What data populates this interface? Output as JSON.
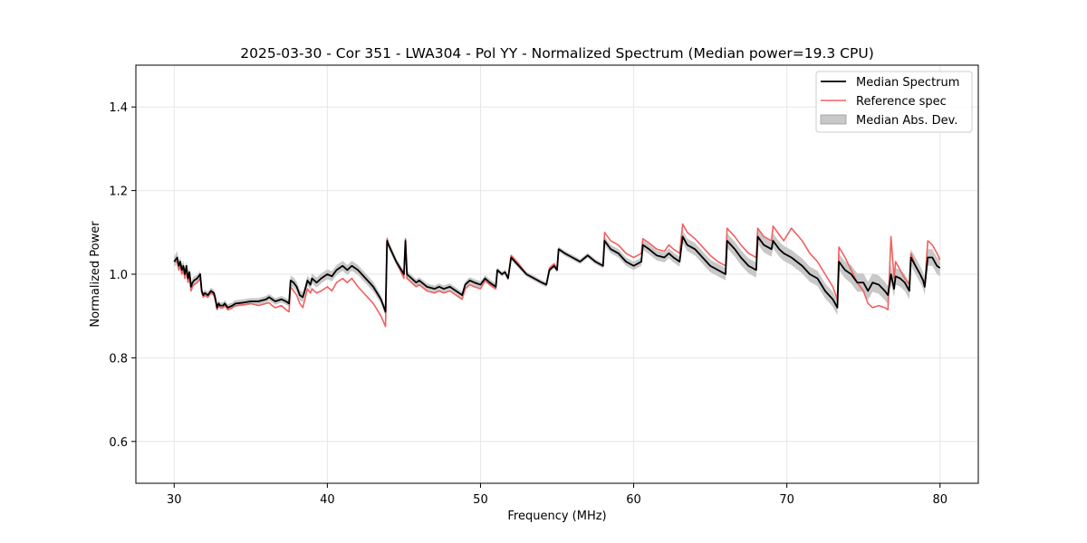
{
  "chart_data": {
    "type": "line",
    "title": "2025-03-30 - Cor 351 - LWA304 - Pol YY - Normalized Spectrum (Median power=19.3 CPU)",
    "xlabel": "Frequency (MHz)",
    "ylabel": "Normalized Power",
    "xlim": [
      27.5,
      82.5
    ],
    "ylim": [
      0.5,
      1.5
    ],
    "xticks": [
      30,
      40,
      50,
      60,
      70,
      80
    ],
    "xtick_labels": [
      "30",
      "40",
      "50",
      "60",
      "70",
      "80"
    ],
    "yticks": [
      0.6,
      0.8,
      1.0,
      1.2,
      1.4
    ],
    "ytick_labels": [
      "0.6",
      "0.8",
      "1.0",
      "1.2",
      "1.4"
    ],
    "grid": true,
    "legend_position": "top-right",
    "legend": [
      "Median Spectrum",
      "Reference spec",
      "Median Abs. Dev."
    ],
    "colors": {
      "median": "#000000",
      "reference": "#f06060",
      "mad_fill": "#c8c8c8",
      "grid": "#e6e6e6"
    },
    "series": [
      {
        "name": "Median Spectrum",
        "x": [
          30.0,
          30.2,
          30.3,
          30.4,
          30.5,
          30.6,
          30.7,
          30.8,
          30.9,
          31.0,
          31.1,
          31.2,
          31.3,
          31.5,
          31.7,
          31.8,
          31.9,
          32.0,
          32.2,
          32.4,
          32.6,
          32.7,
          32.8,
          32.9,
          33.0,
          33.2,
          33.3,
          33.5,
          33.8,
          34.0,
          34.5,
          35.0,
          35.5,
          36.0,
          36.2,
          36.4,
          36.6,
          37.0,
          37.3,
          37.5,
          37.6,
          37.8,
          38.0,
          38.2,
          38.4,
          38.6,
          38.7,
          38.9,
          39.0,
          39.3,
          39.6,
          40.0,
          40.3,
          40.6,
          41.0,
          41.3,
          41.6,
          42.0,
          42.5,
          43.0,
          43.5,
          43.8,
          43.9,
          44.0,
          44.5,
          45.0,
          45.1,
          45.2,
          45.5,
          45.8,
          46.0,
          46.5,
          47.0,
          47.3,
          47.6,
          48.0,
          48.4,
          48.6,
          48.8,
          49.0,
          49.3,
          49.6,
          50.0,
          50.3,
          50.6,
          51.0,
          51.1,
          51.4,
          51.6,
          51.8,
          52.0,
          52.5,
          53.0,
          53.5,
          54.0,
          54.3,
          54.5,
          54.8,
          55.0,
          55.1,
          55.5,
          56.0,
          56.5,
          57.0,
          57.5,
          58.0,
          58.1,
          58.5,
          59.0,
          59.5,
          60.0,
          60.5,
          60.6,
          61.0,
          61.5,
          62.0,
          62.3,
          62.6,
          63.0,
          63.2,
          63.5,
          64.0,
          64.5,
          65.0,
          65.5,
          66.0,
          66.1,
          66.6,
          67.0,
          67.5,
          68.0,
          68.1,
          68.5,
          69.0,
          69.1,
          69.5,
          69.8,
          70.3,
          71.0,
          71.5,
          72.0,
          72.5,
          73.0,
          73.3,
          73.4,
          73.8,
          74.2,
          74.6,
          75.0,
          75.3,
          75.6,
          76.0,
          76.4,
          76.6,
          76.8,
          77.0,
          77.1,
          77.4,
          77.7,
          78.0,
          78.1,
          78.4,
          78.7,
          78.9,
          79.0,
          79.2,
          79.5,
          79.8,
          80.0
        ],
        "values": [
          1.03,
          1.04,
          1.02,
          1.03,
          1.01,
          1.02,
          1.0,
          1.02,
          0.99,
          1.005,
          0.97,
          0.98,
          0.985,
          0.99,
          1.0,
          0.96,
          0.95,
          0.955,
          0.95,
          0.96,
          0.955,
          0.94,
          0.92,
          0.93,
          0.925,
          0.925,
          0.93,
          0.92,
          0.925,
          0.93,
          0.932,
          0.935,
          0.935,
          0.94,
          0.945,
          0.94,
          0.935,
          0.94,
          0.935,
          0.93,
          0.985,
          0.98,
          0.97,
          0.95,
          0.945,
          0.97,
          0.985,
          0.975,
          0.99,
          0.98,
          0.99,
          1.0,
          0.995,
          1.01,
          1.02,
          1.01,
          1.02,
          1.01,
          0.99,
          0.97,
          0.94,
          0.91,
          1.08,
          1.07,
          1.03,
          1.0,
          1.08,
          1.0,
          0.99,
          0.98,
          0.985,
          0.97,
          0.965,
          0.97,
          0.965,
          0.97,
          0.96,
          0.955,
          0.95,
          0.975,
          0.985,
          0.98,
          0.975,
          0.99,
          0.98,
          0.97,
          1.01,
          1.0,
          1.005,
          0.99,
          1.04,
          1.02,
          1.0,
          0.99,
          0.98,
          0.975,
          1.01,
          1.02,
          1.01,
          1.06,
          1.05,
          1.04,
          1.03,
          1.045,
          1.03,
          1.02,
          1.08,
          1.06,
          1.05,
          1.03,
          1.02,
          1.03,
          1.07,
          1.06,
          1.045,
          1.04,
          1.05,
          1.04,
          1.03,
          1.09,
          1.07,
          1.06,
          1.04,
          1.02,
          1.01,
          1.0,
          1.08,
          1.06,
          1.04,
          1.02,
          1.01,
          1.09,
          1.07,
          1.06,
          1.08,
          1.06,
          1.05,
          1.04,
          1.02,
          1.0,
          0.99,
          0.96,
          0.94,
          0.92,
          1.03,
          1.01,
          1.0,
          0.98,
          0.98,
          0.96,
          0.98,
          0.975,
          0.96,
          0.95,
          1.0,
          0.965,
          0.995,
          0.99,
          0.98,
          0.96,
          1.04,
          1.02,
          1.0,
          0.985,
          0.97,
          1.04,
          1.04,
          1.02,
          1.015
        ],
        "mad": [
          0.012,
          0.015,
          0.012,
          0.012,
          0.012,
          0.012,
          0.01,
          0.01,
          0.01,
          0.01,
          0.01,
          0.01,
          0.01,
          0.008,
          0.008,
          0.008,
          0.008,
          0.008,
          0.008,
          0.008,
          0.008,
          0.008,
          0.008,
          0.008,
          0.008,
          0.008,
          0.008,
          0.008,
          0.008,
          0.008,
          0.008,
          0.008,
          0.008,
          0.008,
          0.008,
          0.008,
          0.008,
          0.008,
          0.008,
          0.008,
          0.012,
          0.012,
          0.012,
          0.012,
          0.012,
          0.012,
          0.012,
          0.012,
          0.012,
          0.012,
          0.012,
          0.012,
          0.012,
          0.012,
          0.012,
          0.012,
          0.012,
          0.012,
          0.012,
          0.012,
          0.01,
          0.01,
          0.01,
          0.01,
          0.008,
          0.008,
          0.008,
          0.008,
          0.008,
          0.008,
          0.008,
          0.008,
          0.008,
          0.008,
          0.008,
          0.008,
          0.008,
          0.008,
          0.008,
          0.008,
          0.008,
          0.008,
          0.008,
          0.008,
          0.008,
          0.008,
          0.006,
          0.006,
          0.006,
          0.006,
          0.006,
          0.006,
          0.006,
          0.006,
          0.006,
          0.006,
          0.006,
          0.006,
          0.006,
          0.006,
          0.006,
          0.006,
          0.006,
          0.006,
          0.006,
          0.006,
          0.01,
          0.01,
          0.01,
          0.01,
          0.01,
          0.01,
          0.012,
          0.012,
          0.012,
          0.012,
          0.012,
          0.012,
          0.012,
          0.015,
          0.015,
          0.015,
          0.015,
          0.015,
          0.015,
          0.015,
          0.018,
          0.018,
          0.018,
          0.018,
          0.018,
          0.018,
          0.018,
          0.018,
          0.018,
          0.018,
          0.018,
          0.018,
          0.018,
          0.018,
          0.018,
          0.018,
          0.018,
          0.018,
          0.02,
          0.02,
          0.022,
          0.022,
          0.022,
          0.022,
          0.022,
          0.022,
          0.022,
          0.022,
          0.022,
          0.02,
          0.02,
          0.02,
          0.02,
          0.02,
          0.02,
          0.02,
          0.02,
          0.02,
          0.02,
          0.02,
          0.02,
          0.02,
          0.02
        ]
      },
      {
        "name": "Reference spec",
        "x": [
          30.0,
          30.2,
          30.3,
          30.4,
          30.5,
          30.6,
          30.7,
          30.8,
          30.9,
          31.0,
          31.1,
          31.2,
          31.3,
          31.5,
          31.7,
          31.8,
          31.9,
          32.0,
          32.2,
          32.4,
          32.6,
          32.7,
          32.8,
          32.9,
          33.0,
          33.2,
          33.3,
          33.5,
          33.8,
          34.0,
          34.5,
          35.0,
          35.5,
          36.0,
          36.2,
          36.4,
          36.6,
          37.0,
          37.3,
          37.5,
          37.6,
          37.8,
          38.0,
          38.2,
          38.4,
          38.6,
          38.7,
          38.9,
          39.0,
          39.3,
          39.6,
          40.0,
          40.3,
          40.6,
          41.0,
          41.3,
          41.6,
          42.0,
          42.5,
          43.0,
          43.5,
          43.8,
          43.9,
          44.0,
          44.5,
          45.0,
          45.1,
          45.2,
          45.5,
          45.8,
          46.0,
          46.5,
          47.0,
          47.3,
          47.6,
          48.0,
          48.4,
          48.6,
          48.8,
          49.0,
          49.3,
          49.6,
          50.0,
          50.3,
          50.6,
          51.0,
          51.1,
          51.4,
          51.6,
          51.8,
          52.0,
          52.5,
          53.0,
          53.5,
          54.0,
          54.3,
          54.5,
          54.8,
          55.0,
          55.1,
          55.5,
          56.0,
          56.5,
          57.0,
          57.5,
          58.0,
          58.1,
          58.5,
          59.0,
          59.5,
          60.0,
          60.5,
          60.6,
          61.0,
          61.5,
          62.0,
          62.3,
          62.6,
          63.0,
          63.2,
          63.5,
          64.0,
          64.5,
          65.0,
          65.5,
          66.0,
          66.1,
          66.6,
          67.0,
          67.5,
          68.0,
          68.1,
          68.5,
          69.0,
          69.1,
          69.5,
          69.8,
          70.3,
          71.0,
          71.5,
          72.0,
          72.5,
          73.0,
          73.3,
          73.4,
          73.8,
          74.2,
          74.6,
          75.0,
          75.3,
          75.6,
          76.0,
          76.4,
          76.6,
          76.8,
          77.0,
          77.1,
          77.4,
          77.7,
          78.0,
          78.1,
          78.4,
          78.7,
          78.9,
          79.0,
          79.2,
          79.5,
          79.8,
          80.0
        ],
        "values": [
          1.03,
          1.03,
          1.01,
          1.02,
          1.0,
          1.01,
          0.99,
          1.01,
          0.98,
          0.995,
          0.96,
          0.97,
          0.975,
          0.98,
          0.99,
          0.955,
          0.945,
          0.95,
          0.945,
          0.955,
          0.95,
          0.935,
          0.915,
          0.925,
          0.92,
          0.92,
          0.925,
          0.915,
          0.92,
          0.925,
          0.927,
          0.93,
          0.925,
          0.93,
          0.932,
          0.925,
          0.92,
          0.925,
          0.915,
          0.91,
          0.97,
          0.96,
          0.95,
          0.93,
          0.92,
          0.95,
          0.965,
          0.955,
          0.965,
          0.955,
          0.96,
          0.97,
          0.96,
          0.98,
          0.99,
          0.98,
          0.99,
          0.97,
          0.95,
          0.93,
          0.9,
          0.875,
          1.085,
          1.07,
          1.03,
          0.99,
          1.085,
          0.99,
          0.98,
          0.97,
          0.975,
          0.96,
          0.955,
          0.96,
          0.955,
          0.96,
          0.95,
          0.945,
          0.94,
          0.965,
          0.975,
          0.97,
          0.965,
          0.985,
          0.975,
          0.965,
          1.01,
          1.0,
          1.005,
          0.99,
          1.045,
          1.025,
          1.0,
          0.99,
          0.98,
          0.975,
          1.015,
          1.025,
          1.015,
          1.06,
          1.05,
          1.04,
          1.03,
          1.045,
          1.03,
          1.02,
          1.1,
          1.08,
          1.07,
          1.05,
          1.04,
          1.05,
          1.085,
          1.075,
          1.06,
          1.055,
          1.07,
          1.06,
          1.05,
          1.12,
          1.1,
          1.085,
          1.065,
          1.045,
          1.03,
          1.02,
          1.11,
          1.09,
          1.07,
          1.05,
          1.04,
          1.11,
          1.09,
          1.08,
          1.115,
          1.095,
          1.08,
          1.11,
          1.08,
          1.05,
          1.03,
          1.0,
          0.97,
          0.94,
          1.065,
          1.04,
          1.01,
          0.98,
          0.96,
          0.93,
          0.92,
          0.925,
          0.92,
          0.915,
          1.09,
          0.99,
          1.03,
          1.01,
          0.99,
          0.975,
          1.05,
          1.02,
          1.0,
          0.985,
          0.97,
          1.08,
          1.07,
          1.05,
          1.035
        ]
      }
    ]
  }
}
